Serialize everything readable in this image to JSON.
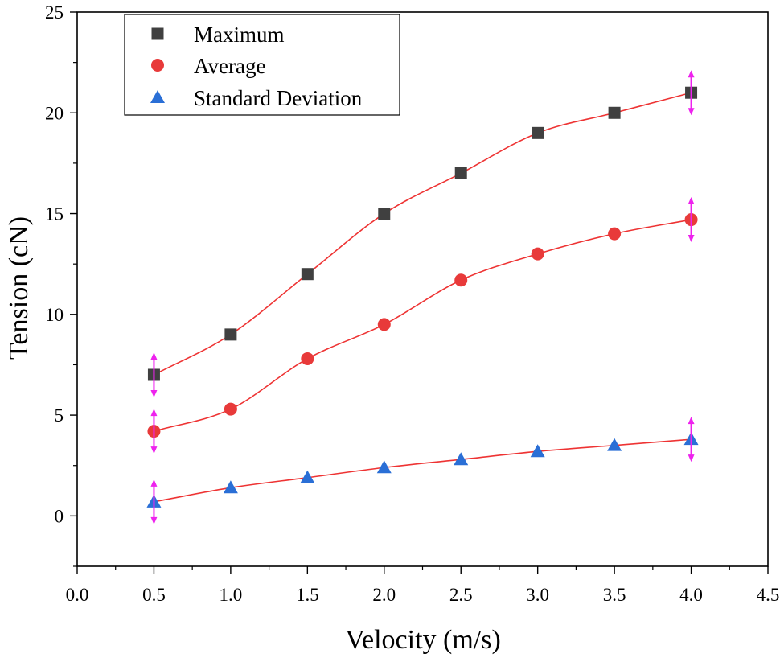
{
  "chart_data": {
    "type": "scatter",
    "title": "",
    "xlabel": "Velocity (m/s)",
    "ylabel": "Tension (cN)",
    "xlim": [
      0.0,
      4.5
    ],
    "ylim": [
      -2.5,
      25
    ],
    "x_ticks": [
      "0.0",
      "0.5",
      "1.0",
      "1.5",
      "2.0",
      "2.5",
      "3.0",
      "3.5",
      "4.0",
      "4.5"
    ],
    "y_ticks": [
      "0",
      "5",
      "10",
      "15",
      "20",
      "25"
    ],
    "legend_position": "top-left",
    "series": [
      {
        "name": "Maximum",
        "marker": "square",
        "color": "#404040",
        "x": [
          0.5,
          1.0,
          1.5,
          2.0,
          2.5,
          3.0,
          3.5,
          4.0
        ],
        "y": [
          7.0,
          9.0,
          12.0,
          15.0,
          17.0,
          19.0,
          20.0,
          21.0
        ]
      },
      {
        "name": "Average",
        "marker": "circle",
        "color": "#e83a3a",
        "x": [
          0.5,
          1.0,
          1.5,
          2.0,
          2.5,
          3.0,
          3.5,
          4.0
        ],
        "y": [
          4.2,
          5.3,
          7.8,
          9.5,
          11.7,
          13.0,
          14.0,
          14.7
        ]
      },
      {
        "name": "Standard Deviation",
        "marker": "triangle",
        "color": "#2a6fd6",
        "x": [
          0.5,
          1.0,
          1.5,
          2.0,
          2.5,
          3.0,
          3.5,
          4.0
        ],
        "y": [
          0.7,
          1.4,
          1.9,
          2.4,
          2.8,
          3.2,
          3.5,
          3.8
        ]
      }
    ],
    "fit_line_color": "#ee3333",
    "error_arrow_color": "#ee22ee",
    "error_arrows": [
      {
        "series": "Maximum",
        "x": 0.5
      },
      {
        "series": "Maximum",
        "x": 4.0
      },
      {
        "series": "Average",
        "x": 0.5
      },
      {
        "series": "Average",
        "x": 4.0
      },
      {
        "series": "Standard Deviation",
        "x": 0.5
      },
      {
        "series": "Standard Deviation",
        "x": 4.0
      }
    ]
  }
}
